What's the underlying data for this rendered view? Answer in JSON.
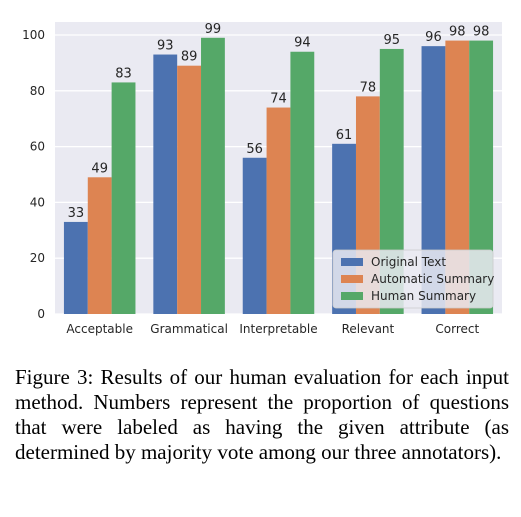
{
  "chart_data": {
    "type": "bar",
    "categories": [
      "Acceptable",
      "Grammatical",
      "Interpretable",
      "Relevant",
      "Correct"
    ],
    "series": [
      {
        "name": "Original Text",
        "values": [
          33,
          93,
          56,
          61,
          96
        ],
        "color": "#4c72b0"
      },
      {
        "name": "Automatic Summary",
        "values": [
          49,
          89,
          74,
          78,
          98
        ],
        "color": "#dd8452"
      },
      {
        "name": "Human Summary",
        "values": [
          83,
          99,
          94,
          95,
          98
        ],
        "color": "#55a868"
      }
    ],
    "ylim": [
      0,
      100
    ],
    "yticks": [
      0,
      20,
      40,
      60,
      80,
      100
    ],
    "background": "#eaeaf2",
    "grid": true,
    "legend_position": "lower-right"
  },
  "caption": "Figure 3: Results of our human evaluation for each input method. Numbers represent the proportion of questions that were labeled as having the given attribute (as determined by majority vote among our three annotators)."
}
